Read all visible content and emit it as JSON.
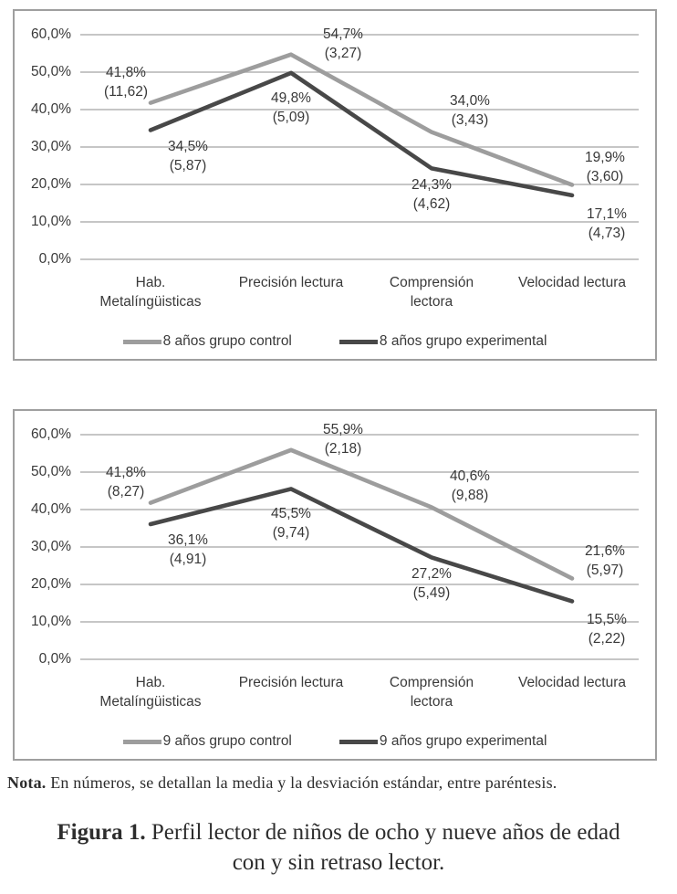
{
  "colors": {
    "control": "#9d9d9d",
    "experimental": "#484848",
    "gridline": "#b3b3b3",
    "border": "#9f9f9f",
    "text": "#3a3a3a"
  },
  "note": {
    "label": "Nota.",
    "text": "En números, se detallan la media y la desviación estándar, entre paréntesis."
  },
  "caption": {
    "label": "Figura 1.",
    "text": "Perfil lector de niños de ocho y nueve años de edad\ncon y sin retraso lector."
  },
  "chart_data": [
    {
      "type": "line",
      "title": "",
      "xlabel": "",
      "ylabel": "",
      "ylim": [
        0,
        60
      ],
      "grid": true,
      "legend_position": "bottom",
      "y_tick_labels": [
        "60,0%",
        "50,0%",
        "40,0%",
        "30,0%",
        "20,0%",
        "10,0%",
        "0,0%"
      ],
      "categories": [
        "Hab.\nMetalíngüisticas",
        "Precisión lectura",
        "Comprensión\nlectora",
        "Velocidad lectura"
      ],
      "series": [
        {
          "name": "8 años grupo control",
          "role": "control",
          "values": [
            41.8,
            54.7,
            34.0,
            19.9
          ],
          "point_labels": [
            {
              "pct": "41,8%",
              "sd": "(11,62)"
            },
            {
              "pct": "54,7%",
              "sd": "(3,27)"
            },
            {
              "pct": "34,0%",
              "sd": "(3,43)"
            },
            {
              "pct": "19,9%",
              "sd": "(3,60)"
            }
          ]
        },
        {
          "name": "8 años grupo experimental",
          "role": "experimental",
          "values": [
            34.5,
            49.8,
            24.3,
            17.1
          ],
          "point_labels": [
            {
              "pct": "34,5%",
              "sd": "(5,87)"
            },
            {
              "pct": "49,8%",
              "sd": "(5,09)"
            },
            {
              "pct": "24,3%",
              "sd": "(4,62)"
            },
            {
              "pct": "17,1%",
              "sd": "(4,73)"
            }
          ]
        }
      ]
    },
    {
      "type": "line",
      "title": "",
      "xlabel": "",
      "ylabel": "",
      "ylim": [
        0,
        60
      ],
      "grid": true,
      "legend_position": "bottom",
      "y_tick_labels": [
        "60,0%",
        "50,0%",
        "40,0%",
        "30,0%",
        "20,0%",
        "10,0%",
        "0,0%"
      ],
      "categories": [
        "Hab.\nMetalíngüisticas",
        "Precisión lectura",
        "Comprensión\nlectora",
        "Velocidad lectura"
      ],
      "series": [
        {
          "name": "9 años grupo control",
          "role": "control",
          "values": [
            41.8,
            55.9,
            40.6,
            21.6
          ],
          "point_labels": [
            {
              "pct": "41,8%",
              "sd": "(8,27)"
            },
            {
              "pct": "55,9%",
              "sd": "(2,18)"
            },
            {
              "pct": "40,6%",
              "sd": "(9,88)"
            },
            {
              "pct": "21,6%",
              "sd": "(5,97)"
            }
          ]
        },
        {
          "name": "9 años grupo experimental",
          "role": "experimental",
          "values": [
            36.1,
            45.5,
            27.2,
            15.5
          ],
          "point_labels": [
            {
              "pct": "36,1%",
              "sd": "(4,91)"
            },
            {
              "pct": "45,5%",
              "sd": "(9,74)"
            },
            {
              "pct": "27,2%",
              "sd": "(5,49)"
            },
            {
              "pct": "15,5%",
              "sd": "(2,22)"
            }
          ]
        }
      ]
    }
  ]
}
